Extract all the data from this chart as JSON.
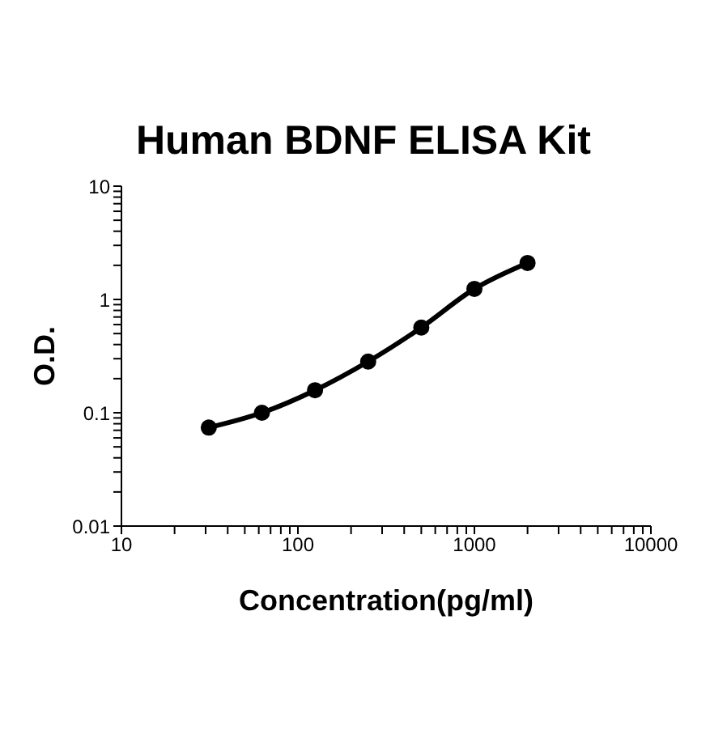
{
  "chart_data": {
    "type": "line",
    "title": "Human BDNF ELISA Kit",
    "xlabel": "Concentration(pg/ml)",
    "ylabel": "O.D.",
    "log": "xy",
    "grid": false,
    "legend": false,
    "marker": "circle",
    "line_style": "solid",
    "x": [
      31.25,
      62.5,
      125,
      250,
      500,
      1000,
      2000
    ],
    "series": [
      {
        "color": "#000000",
        "values": [
          0.074,
          0.1,
          0.158,
          0.283,
          0.565,
          1.24,
          2.1
        ]
      }
    ],
    "xlim": [
      10,
      10000
    ],
    "xticks": [
      10,
      {
        "value": 20,
        "label": null
      },
      {
        "value": 30,
        "label": null
      },
      {
        "value": 40,
        "label": null
      },
      {
        "value": 50,
        "label": null
      },
      {
        "value": 60,
        "label": null
      },
      {
        "value": 70,
        "label": null
      },
      {
        "value": 80,
        "label": null
      },
      {
        "value": 90,
        "label": null
      },
      100,
      {
        "value": 200,
        "label": null
      },
      {
        "value": 300,
        "label": null
      },
      {
        "value": 400,
        "label": null
      },
      {
        "value": 500,
        "label": null
      },
      {
        "value": 600,
        "label": null
      },
      {
        "value": 700,
        "label": null
      },
      {
        "value": 800,
        "label": null
      },
      {
        "value": 900,
        "label": null
      },
      1000,
      {
        "value": 2000,
        "label": null
      },
      {
        "value": 3000,
        "label": null
      },
      {
        "value": 4000,
        "label": null
      },
      {
        "value": 5000,
        "label": null
      },
      {
        "value": 6000,
        "label": null
      },
      {
        "value": 7000,
        "label": null
      },
      {
        "value": 8000,
        "label": null
      },
      {
        "value": 9000,
        "label": null
      },
      10000
    ],
    "ylim": [
      0.01,
      10
    ],
    "yticks": [
      0.01,
      {
        "value": 0.02,
        "label": null
      },
      {
        "value": 0.03,
        "label": null
      },
      {
        "value": 0.04,
        "label": null
      },
      {
        "value": 0.05,
        "label": null
      },
      {
        "value": 0.06,
        "label": null
      },
      {
        "value": 0.07,
        "label": null
      },
      {
        "value": 0.08,
        "label": null
      },
      {
        "value": 0.09,
        "label": null
      },
      0.1,
      {
        "value": 0.2,
        "label": null
      },
      {
        "value": 0.3,
        "label": null
      },
      {
        "value": 0.4,
        "label": null
      },
      {
        "value": 0.5,
        "label": null
      },
      {
        "value": 0.6,
        "label": null
      },
      {
        "value": 0.7,
        "label": null
      },
      {
        "value": 0.8,
        "label": null
      },
      {
        "value": 0.9,
        "label": null
      },
      1,
      {
        "value": 2,
        "label": null
      },
      {
        "value": 3,
        "label": null
      },
      {
        "value": 4,
        "label": null
      },
      {
        "value": 5,
        "label": null
      },
      {
        "value": 6,
        "label": null
      },
      {
        "value": 7,
        "label": null
      },
      {
        "value": 8,
        "label": null
      },
      {
        "value": 9,
        "label": null
      },
      10
    ]
  }
}
